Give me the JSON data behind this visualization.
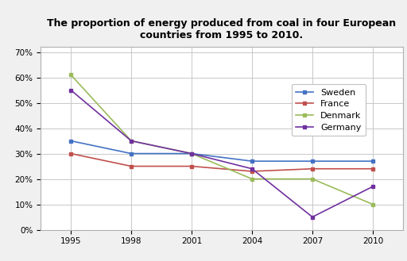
{
  "title": "The proportion of energy produced from coal in four European\ncountries from 1995 to 2010.",
  "years": [
    1995,
    1998,
    2001,
    2004,
    2007,
    2010
  ],
  "series": {
    "Sweden": {
      "values": [
        0.35,
        0.3,
        0.3,
        0.27,
        0.27,
        0.27
      ],
      "color": "#4472C4"
    },
    "France": {
      "values": [
        0.3,
        0.25,
        0.25,
        0.23,
        0.24,
        0.24
      ],
      "color": "#C0504D"
    },
    "Denmark": {
      "values": [
        0.61,
        0.35,
        0.3,
        0.2,
        0.2,
        0.1
      ],
      "color": "#9BBB59"
    },
    "Germany": {
      "values": [
        0.55,
        0.35,
        0.3,
        0.24,
        0.05,
        0.17
      ],
      "color": "#7030A0"
    }
  },
  "xlim": [
    1993.5,
    2011.5
  ],
  "ylim": [
    0.0,
    0.72
  ],
  "yticks": [
    0.0,
    0.1,
    0.2,
    0.3,
    0.4,
    0.5,
    0.6,
    0.7
  ],
  "ytick_labels": [
    "0%",
    "10%",
    "20%",
    "30%",
    "40%",
    "50%",
    "60%",
    "70%"
  ],
  "xticks": [
    1995,
    1998,
    2001,
    2004,
    2007,
    2010
  ],
  "background_color": "#F0F0F0",
  "plot_bg_color": "#FFFFFF",
  "grid_color": "#C8C8C8",
  "title_fontsize": 9,
  "legend_fontsize": 8,
  "tick_fontsize": 7.5,
  "line_width": 1.2,
  "marker_size": 3
}
